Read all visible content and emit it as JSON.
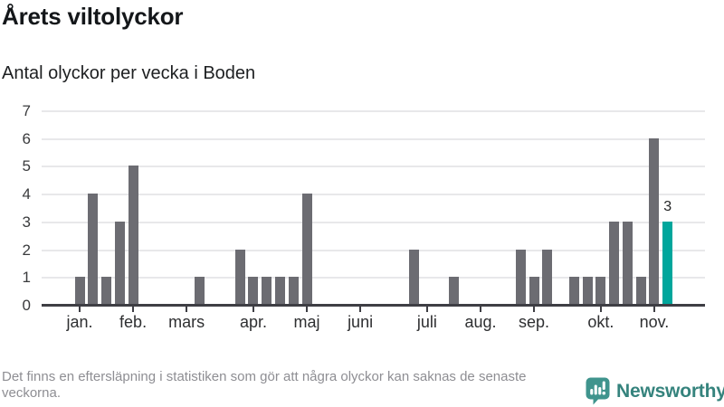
{
  "title": "Årets viltolyckor",
  "subtitle": "Antal olyckor per vecka i Boden",
  "chart_data": {
    "type": "bar",
    "title": "Årets viltolyckor",
    "subtitle": "Antal olyckor per vecka i Boden",
    "x_unit": "vecka",
    "first_week": 1,
    "values": [
      1,
      4,
      1,
      3,
      5,
      0,
      0,
      0,
      0,
      1,
      0,
      0,
      2,
      1,
      1,
      1,
      1,
      4,
      0,
      0,
      0,
      0,
      0,
      0,
      0,
      2,
      0,
      0,
      1,
      0,
      0,
      0,
      0,
      2,
      1,
      2,
      0,
      1,
      1,
      1,
      3,
      3,
      1,
      6,
      3
    ],
    "month_ticks": [
      {
        "label": "jan.",
        "week": 1
      },
      {
        "label": "feb.",
        "week": 5
      },
      {
        "label": "mars",
        "week": 9
      },
      {
        "label": "apr.",
        "week": 14
      },
      {
        "label": "maj",
        "week": 18
      },
      {
        "label": "juni",
        "week": 22
      },
      {
        "label": "juli",
        "week": 27
      },
      {
        "label": "aug.",
        "week": 31
      },
      {
        "label": "sep.",
        "week": 35
      },
      {
        "label": "okt.",
        "week": 40
      },
      {
        "label": "nov.",
        "week": 44
      }
    ],
    "yticks": [
      0,
      1,
      2,
      3,
      4,
      5,
      6,
      7
    ],
    "ylim": [
      0,
      7
    ],
    "grid": "horizontal",
    "legend": "none",
    "bar_color": "#6C6C72",
    "highlight": {
      "week": 45,
      "value": 3,
      "label": "3",
      "color": "#00A69C"
    }
  },
  "footer": {
    "note": "Det finns en eftersläpning i statistiken som gör att några olyckor kan saknas de senaste veckorna."
  },
  "branding": {
    "name": "Newsworthy",
    "icon": "newsworthy-bubble-chart-icon",
    "text_color": "#35837D",
    "icon_color": "#3F948D"
  }
}
